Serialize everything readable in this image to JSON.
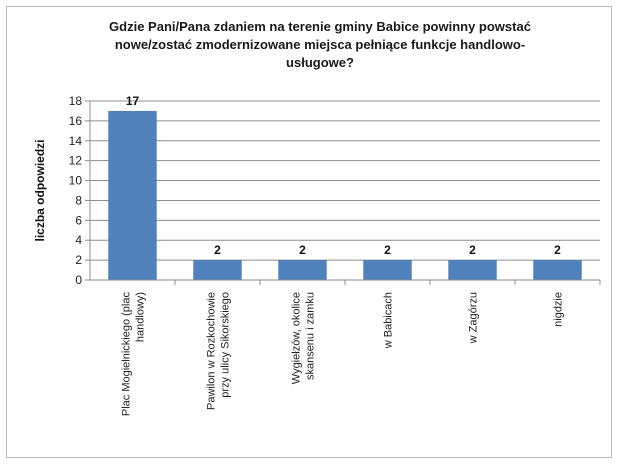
{
  "chart_data": {
    "type": "bar",
    "title_lines": [
      "Gdzie Pani/Pana zdaniem na terenie gminy Babice powinny powstać",
      "nowe/zostać zmodernizowane miejsca pełniące funkcje handlowo-",
      "usługowe?"
    ],
    "ylabel": "liczba odpowiedzi",
    "ylim": [
      0,
      18
    ],
    "yticks": [
      0,
      2,
      4,
      6,
      8,
      10,
      12,
      14,
      16,
      18
    ],
    "categories": [
      [
        "Plac Mogielnickiego (plac",
        "handlowy)"
      ],
      [
        "Pawilon w Rozkochowie",
        "przy ulicy Sikorskiego"
      ],
      [
        "Wygiełzów, okolice",
        "skansenu i zamku"
      ],
      [
        "w Babicach"
      ],
      [
        "w Zagórzu"
      ],
      [
        "nigdzie"
      ]
    ],
    "values": [
      17,
      2,
      2,
      2,
      2,
      2
    ],
    "bar_color": "#4f81bd",
    "grid": true
  }
}
